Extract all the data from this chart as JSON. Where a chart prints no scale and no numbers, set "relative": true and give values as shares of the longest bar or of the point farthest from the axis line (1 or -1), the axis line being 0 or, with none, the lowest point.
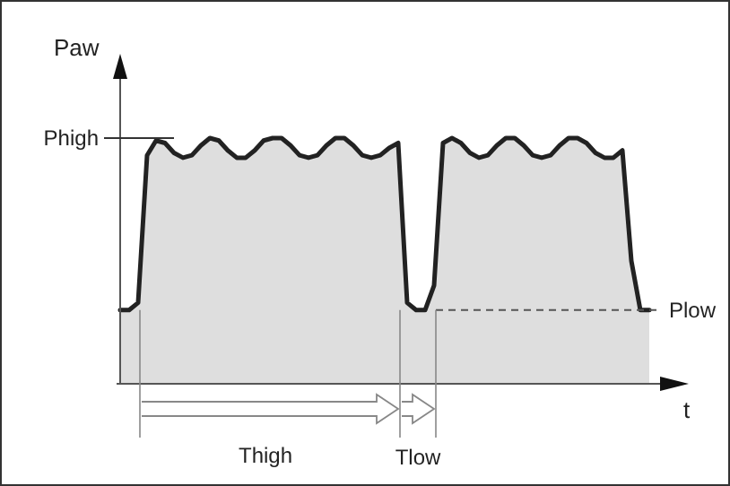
{
  "chart_data": {
    "type": "line",
    "relative": true,
    "xlabel": "t",
    "ylabel": "Paw",
    "categories": [
      null,
      null,
      null,
      null,
      null,
      null,
      null,
      null,
      null,
      null,
      null,
      null,
      null,
      null,
      null,
      null,
      null,
      null,
      null,
      null,
      null,
      null,
      null,
      null,
      null,
      null,
      null,
      null,
      null,
      null,
      null,
      null,
      null,
      null,
      null,
      null,
      null,
      null,
      null,
      null,
      null,
      null,
      null,
      null,
      null,
      null,
      null,
      null,
      null,
      null,
      null,
      null,
      null,
      null,
      null,
      null,
      null,
      null,
      null,
      null
    ],
    "series": [
      {
        "color": "#222222",
        "values": [
          0.3,
          0.3,
          0.33,
          0.93,
          0.99,
          0.98,
          0.94,
          0.92,
          0.93,
          0.97,
          1.0,
          0.99,
          0.95,
          0.92,
          0.92,
          0.95,
          0.99,
          1.0,
          1.0,
          0.97,
          0.93,
          0.92,
          0.93,
          0.97,
          1.0,
          1.0,
          0.97,
          0.93,
          0.92,
          0.93,
          0.96,
          0.98,
          0.33,
          0.3,
          0.3,
          0.4,
          0.98,
          1.0,
          0.98,
          0.94,
          0.92,
          0.93,
          0.97,
          1.0,
          1.0,
          0.97,
          0.93,
          0.92,
          0.93,
          0.97,
          1.0,
          1.0,
          0.98,
          0.94,
          0.92,
          0.92,
          0.95,
          0.5,
          0.3,
          0.3
        ]
      }
    ],
    "ref_lines": [
      {
        "axis": "y",
        "value": 1.0,
        "label": "Phigh",
        "color": "#333333",
        "line_style": "solid"
      },
      {
        "axis": "y",
        "value": 0.3,
        "label": "Plow",
        "color": "#555555",
        "line_style": "dashed"
      }
    ],
    "annotations": [
      "Thigh",
      "Tlow"
    ]
  }
}
